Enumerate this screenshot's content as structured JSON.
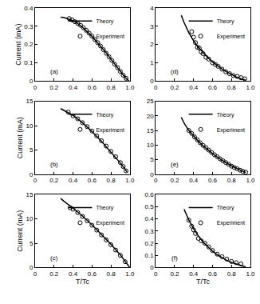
{
  "chart_data": [
    {
      "type": "line",
      "annotation": "(a)",
      "y_label": "Current (mA)",
      "legend": "upper right",
      "grid": false,
      "xlim": [
        0,
        1
      ],
      "xticks": [
        0,
        0.2,
        0.4,
        0.6,
        0.8,
        {
          "value": 1,
          "label": "1.0"
        }
      ],
      "ylim": [
        0,
        0.4
      ],
      "yticks": [
        0,
        0.1,
        0.2,
        0.3,
        0.4
      ],
      "series": [
        {
          "name": "Theory",
          "type": "line",
          "color": "#000000",
          "line_style": "solid",
          "x": [
            0.27,
            0.3,
            0.35,
            0.4,
            0.45,
            0.5,
            0.55,
            0.6,
            0.65,
            0.7,
            0.75,
            0.8,
            0.85,
            0.9,
            0.95,
            0.99
          ],
          "values": [
            0.35,
            0.348,
            0.34,
            0.33,
            0.315,
            0.295,
            0.27,
            0.245,
            0.215,
            0.185,
            0.155,
            0.12,
            0.085,
            0.05,
            0.02,
            0
          ]
        },
        {
          "name": "Experiment",
          "type": "scatter",
          "color": "#000000",
          "marker": "circle-open",
          "x": [
            0.36,
            0.39,
            0.42,
            0.45,
            0.48,
            0.51,
            0.54,
            0.57,
            0.6,
            0.63,
            0.66,
            0.69,
            0.72,
            0.75,
            0.78,
            0.81,
            0.84,
            0.87,
            0.9,
            0.93,
            0.96
          ],
          "values": [
            0.342,
            0.335,
            0.325,
            0.315,
            0.305,
            0.292,
            0.278,
            0.262,
            0.246,
            0.228,
            0.21,
            0.192,
            0.172,
            0.152,
            0.133,
            0.113,
            0.092,
            0.073,
            0.052,
            0.032,
            0.015
          ]
        }
      ]
    },
    {
      "type": "line",
      "annotation": "(b)",
      "y_label": "Current (mA)",
      "legend": "upper right",
      "grid": false,
      "xlim": [
        0,
        1
      ],
      "xticks": [
        0,
        0.2,
        0.4,
        0.6,
        0.8,
        {
          "value": 1,
          "label": "1.0"
        }
      ],
      "ylim": [
        0,
        15
      ],
      "yticks": [
        0,
        5,
        10,
        15
      ],
      "series": [
        {
          "name": "Theory",
          "type": "line",
          "color": "#000000",
          "line_style": "solid",
          "x": [
            0.27,
            0.3,
            0.4,
            0.5,
            0.6,
            0.7,
            0.8,
            0.9,
            0.97
          ],
          "values": [
            13.5,
            13.2,
            12.1,
            10.6,
            8.8,
            6.8,
            4.6,
            2.3,
            0.5
          ]
        },
        {
          "name": "Experiment",
          "type": "scatter",
          "color": "#000000",
          "marker": "circle-open",
          "x": [
            0.35,
            0.4,
            0.45,
            0.5,
            0.55,
            0.6,
            0.65,
            0.7,
            0.75,
            0.8,
            0.85,
            0.9,
            0.93,
            0.96
          ],
          "values": [
            12.8,
            12.0,
            11.4,
            10.6,
            9.8,
            8.9,
            7.9,
            6.9,
            5.8,
            4.7,
            3.6,
            2.4,
            1.6,
            0.7
          ]
        }
      ]
    },
    {
      "type": "line",
      "annotation": "(c)",
      "x_label": "T/Tc",
      "y_label": "Current (mA)",
      "legend": "upper right",
      "grid": false,
      "xlim": [
        0,
        1
      ],
      "xticks": [
        0,
        0.2,
        0.4,
        0.6,
        0.8,
        {
          "value": 1,
          "label": "1.0"
        }
      ],
      "ylim": [
        0,
        15
      ],
      "yticks": [
        0,
        5,
        10,
        15
      ],
      "series": [
        {
          "name": "Theory",
          "type": "line",
          "color": "#000000",
          "line_style": "solid",
          "x": [
            0.27,
            0.3,
            0.4,
            0.5,
            0.6,
            0.7,
            0.8,
            0.9,
            0.97,
            1.0
          ],
          "values": [
            14.2,
            13.7,
            12.2,
            10.6,
            8.8,
            6.8,
            4.8,
            2.6,
            0.8,
            0
          ]
        },
        {
          "name": "Experiment",
          "type": "scatter",
          "color": "#000000",
          "marker": "circle-open",
          "x": [
            0.37,
            0.4,
            0.45,
            0.5,
            0.55,
            0.6,
            0.65,
            0.7,
            0.75,
            0.8,
            0.85,
            0.9,
            0.95
          ],
          "values": [
            12.3,
            12,
            11.3,
            10.5,
            9.6,
            8.7,
            7.7,
            6.7,
            5.7,
            4.7,
            3.6,
            2.5,
            1.2
          ]
        }
      ]
    },
    {
      "type": "line",
      "annotation": "(d)",
      "legend": "upper right",
      "grid": false,
      "xlim": [
        0,
        1
      ],
      "xticks": [
        0,
        0.2,
        0.4,
        0.6,
        0.8,
        {
          "value": 1,
          "label": "1.0"
        }
      ],
      "ylim": [
        0,
        4
      ],
      "yticks": [
        0,
        1,
        2,
        3,
        4
      ],
      "series": [
        {
          "name": "Theory",
          "type": "line",
          "color": "#000000",
          "line_style": "solid",
          "x": [
            0.27,
            0.3,
            0.35,
            0.4,
            0.45,
            0.5,
            0.55,
            0.6,
            0.65,
            0.7,
            0.75,
            0.8,
            0.85,
            0.9,
            0.95
          ],
          "values": [
            3.6,
            3.2,
            2.65,
            2.2,
            1.85,
            1.55,
            1.28,
            1.05,
            0.85,
            0.65,
            0.5,
            0.35,
            0.22,
            0.12,
            0.05
          ]
        },
        {
          "name": "Experiment",
          "type": "scatter",
          "color": "#000000",
          "marker": "circle-open",
          "x": [
            0.38,
            0.4,
            0.42,
            0.44,
            0.46,
            0.48,
            0.5,
            0.53,
            0.56,
            0.6,
            0.63,
            0.66,
            0.7,
            0.74,
            0.78,
            0.82,
            0.86,
            0.9,
            0.94
          ],
          "values": [
            2.7,
            2.4,
            2.1,
            1.85,
            1.8,
            1.6,
            1.5,
            1.3,
            1.2,
            1.0,
            0.9,
            0.8,
            0.65,
            0.5,
            0.4,
            0.3,
            0.25,
            0.18,
            0.12
          ]
        }
      ]
    },
    {
      "type": "line",
      "annotation": "(e)",
      "legend": "upper right",
      "grid": false,
      "xlim": [
        0,
        1
      ],
      "xticks": [
        0,
        0.2,
        0.4,
        0.6,
        0.8,
        {
          "value": 1,
          "label": "1.0"
        }
      ],
      "ylim": [
        0,
        25
      ],
      "yticks": [
        0,
        5,
        10,
        15,
        20,
        25
      ],
      "series": [
        {
          "name": "Theory",
          "type": "line",
          "color": "#000000",
          "line_style": "solid",
          "x": [
            0.27,
            0.3,
            0.35,
            0.4,
            0.45,
            0.5,
            0.55,
            0.6,
            0.65,
            0.7,
            0.75,
            0.8,
            0.85,
            0.9,
            0.95
          ],
          "values": [
            19.5,
            17.5,
            15,
            13,
            11.3,
            9.8,
            8.4,
            7.1,
            5.9,
            4.8,
            3.8,
            2.9,
            2.0,
            1.3,
            0.6
          ]
        },
        {
          "name": "Experiment",
          "type": "scatter",
          "color": "#000000",
          "marker": "circle-open",
          "x": [
            0.35,
            0.38,
            0.41,
            0.44,
            0.47,
            0.5,
            0.53,
            0.56,
            0.59,
            0.62,
            0.65,
            0.68,
            0.71,
            0.74,
            0.77,
            0.8,
            0.83,
            0.86,
            0.89,
            0.92,
            0.95
          ],
          "values": [
            15,
            14,
            12.8,
            11.8,
            10.8,
            9.9,
            9.1,
            8.3,
            7.5,
            6.7,
            6,
            5.3,
            4.6,
            4,
            3.4,
            2.8,
            2.3,
            1.9,
            1.4,
            1.0,
            0.7
          ]
        }
      ]
    },
    {
      "type": "line",
      "annotation": "(f)",
      "x_label": "T/Tc",
      "legend": "upper right",
      "grid": false,
      "xlim": [
        0,
        1
      ],
      "xticks": [
        0,
        0.2,
        0.4,
        0.6,
        0.8,
        {
          "value": 1,
          "label": "1.0"
        }
      ],
      "ylim": [
        0,
        0.6
      ],
      "yticks": [
        0,
        0.1,
        0.2,
        0.3,
        0.4,
        0.5,
        0.6
      ],
      "series": [
        {
          "name": "Theory",
          "type": "line",
          "color": "#000000",
          "line_style": "solid",
          "x": [
            0.3,
            0.35,
            0.4,
            0.45,
            0.5,
            0.55,
            0.6,
            0.65,
            0.7,
            0.75,
            0.8,
            0.85,
            0.9,
            0.95
          ],
          "values": [
            0.48,
            0.39,
            0.32,
            0.26,
            0.21,
            0.17,
            0.135,
            0.105,
            0.08,
            0.06,
            0.042,
            0.028,
            0.015,
            0.005
          ]
        },
        {
          "name": "Experiment",
          "type": "scatter",
          "color": "#000000",
          "marker": "circle-open",
          "x": [
            0.35,
            0.38,
            0.4,
            0.42,
            0.45,
            0.48,
            0.52,
            0.56,
            0.6,
            0.65,
            0.7,
            0.75,
            0.8,
            0.85,
            0.9
          ],
          "values": [
            0.39,
            0.34,
            0.31,
            0.28,
            0.24,
            0.22,
            0.2,
            0.17,
            0.14,
            0.11,
            0.09,
            0.07,
            0.05,
            0.04,
            0.03
          ]
        }
      ]
    }
  ]
}
